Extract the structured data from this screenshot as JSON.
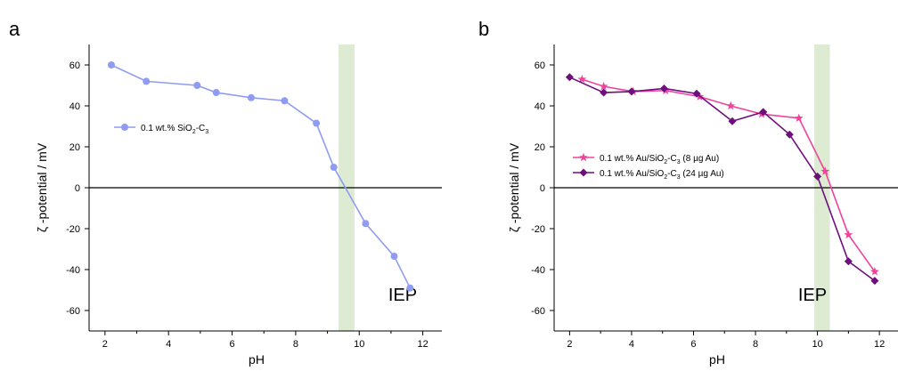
{
  "panels": [
    {
      "panel_label": "a",
      "iep_label": "IEP",
      "iep_color": "#dcebd2"
    },
    {
      "panel_label": "b",
      "iep_label": "IEP",
      "iep_color": "#dcebd2"
    }
  ],
  "chart_data": [
    {
      "type": "line",
      "title": "",
      "xlabel": "pH",
      "ylabel": "ζ -potential / mV",
      "xlim": [
        1.5,
        12.6
      ],
      "ylim": [
        -70,
        70
      ],
      "xticks": [
        2,
        4,
        6,
        8,
        10,
        12
      ],
      "yticks": [
        -60,
        -40,
        -20,
        0,
        20,
        40,
        60
      ],
      "grid": false,
      "legend_position": "upper-left",
      "zero_line": true,
      "iep_band": [
        9.35,
        9.85
      ],
      "series": [
        {
          "name": "0.1 wt.% SiO",
          "name_sub1": "2",
          "name_mid": "-C",
          "name_sub2": "3",
          "name_tail": "",
          "color": "#8f9cf2",
          "marker": "circle",
          "x": [
            2.2,
            3.3,
            4.9,
            5.5,
            6.6,
            7.65,
            8.65,
            9.2,
            10.2,
            11.1,
            11.6
          ],
          "y": [
            60,
            52,
            50,
            46.5,
            44,
            42.5,
            31.5,
            10,
            -17.5,
            -33.5,
            -49
          ]
        }
      ]
    },
    {
      "type": "line",
      "title": "",
      "xlabel": "pH",
      "ylabel": "ζ -potential / mV",
      "xlim": [
        1.5,
        12.6
      ],
      "ylim": [
        -70,
        70
      ],
      "xticks": [
        2,
        4,
        6,
        8,
        10,
        12
      ],
      "yticks": [
        -60,
        -40,
        -20,
        0,
        20,
        40,
        60
      ],
      "grid": false,
      "legend_position": "center-left",
      "zero_line": true,
      "iep_band": [
        9.9,
        10.4
      ],
      "series": [
        {
          "name": "0.1 wt.% Au/SiO",
          "name_sub1": "2",
          "name_mid": "-C",
          "name_sub2": "3",
          "name_tail": " (8 µg Au)",
          "color": "#f0449c",
          "marker": "star",
          "x": [
            2.4,
            3.1,
            4.05,
            5.1,
            6.2,
            7.2,
            8.2,
            9.4,
            10.25,
            11.0,
            11.85
          ],
          "y": [
            53,
            49.5,
            47,
            47.5,
            44.5,
            40,
            36,
            34,
            8,
            -23,
            -41
          ]
        },
        {
          "name": "0.1 wt.% Au/SiO",
          "name_sub1": "2",
          "name_mid": "-C",
          "name_sub2": "3",
          "name_tail": " (24 µg Au)",
          "color": "#6e0f7e",
          "marker": "diamond",
          "x": [
            2.0,
            3.1,
            4.0,
            5.05,
            6.1,
            7.25,
            8.25,
            9.1,
            10.0,
            11.0,
            11.85
          ],
          "y": [
            54,
            46.5,
            47,
            48.5,
            46,
            32.5,
            37,
            26,
            5.5,
            -36,
            -45.5
          ]
        }
      ]
    }
  ]
}
